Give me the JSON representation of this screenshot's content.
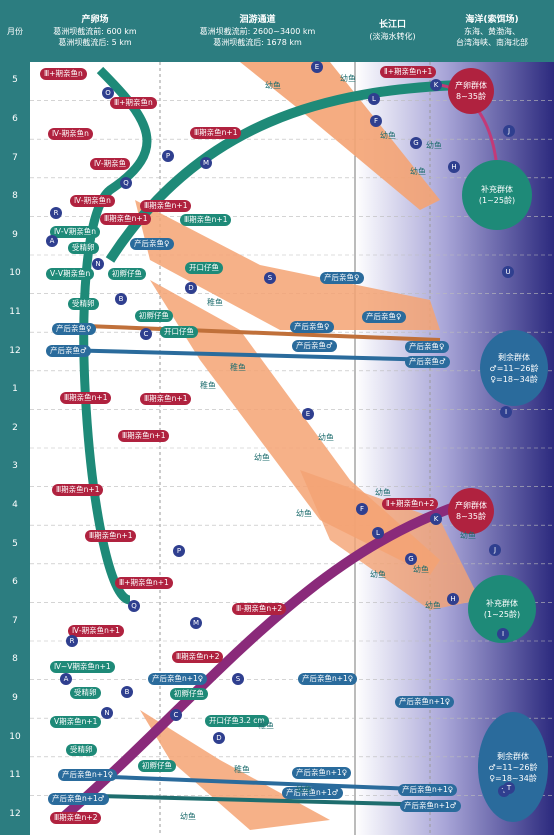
{
  "header": {
    "month": "月份",
    "spawn": {
      "title": "产卵场",
      "l1": "葛洲坝截流前: 600 km",
      "l2": "葛洲坝截流后: 5 km"
    },
    "migr": {
      "title": "洄游通道",
      "l1": "葛洲坝截流前: 2600~3400 km",
      "l2": "葛洲坝截流后: 1678 km"
    },
    "estuary": {
      "title": "长江口",
      "l1": "(淡海水转化)"
    },
    "ocean": {
      "title": "海洋(索饵场)",
      "l1": "东海、黄渤海、",
      "l2": "台湾海峡、南海北部"
    }
  },
  "months": [
    "5",
    "6",
    "7",
    "8",
    "9",
    "10",
    "11",
    "12",
    "1",
    "2",
    "3",
    "4",
    "5",
    "6",
    "7",
    "8",
    "9",
    "10",
    "11",
    "12"
  ],
  "groups": {
    "spawn_group": [
      "产卵群体",
      "8~35龄"
    ],
    "supp_group": [
      "补充群体",
      "(1~25龄)"
    ],
    "rem_group": [
      "剩余群体",
      "♂=11~26龄",
      "♀=18~34龄"
    ]
  },
  "labels": [
    {
      "t": "Ⅲ+期亲鱼n",
      "c": "red"
    },
    {
      "t": "Ⅱ+期亲鱼n+1",
      "c": "red"
    },
    {
      "t": "Ⅲ+期亲鱼n",
      "c": "red"
    },
    {
      "t": "Ⅳ-期亲鱼n",
      "c": "red"
    },
    {
      "t": "Ⅲ期亲鱼n+1",
      "c": "red"
    },
    {
      "t": "Ⅳ-期亲鱼",
      "c": "red"
    },
    {
      "t": "Ⅳ-期亲鱼n",
      "c": "red"
    },
    {
      "t": "Ⅲ期亲鱼n+1",
      "c": "red"
    },
    {
      "t": "Ⅲ期亲鱼n+1",
      "c": "red"
    },
    {
      "t": "Ⅲ期亲鱼n+1",
      "c": "teal"
    },
    {
      "t": "Ⅳ-Ⅴ期亲鱼n",
      "c": "teal"
    },
    {
      "t": "受精卵",
      "c": "teal"
    },
    {
      "t": "产后亲鱼♀",
      "c": "blue"
    },
    {
      "t": "Ⅴ-Ⅴ期亲鱼n",
      "c": "teal"
    },
    {
      "t": "初孵仔鱼",
      "c": "teal"
    },
    {
      "t": "开口仔鱼",
      "c": "teal"
    },
    {
      "t": "产后亲鱼♀",
      "c": "blue"
    },
    {
      "t": "受精卵",
      "c": "teal"
    },
    {
      "t": "初孵仔鱼",
      "c": "teal"
    },
    {
      "t": "产后亲鱼♀",
      "c": "blue"
    },
    {
      "t": "产后亲鱼♀",
      "c": "blue"
    },
    {
      "t": "开口仔鱼",
      "c": "teal"
    },
    {
      "t": "产后亲鱼♀",
      "c": "blue"
    },
    {
      "t": "产后亲鱼♀",
      "c": "blue"
    },
    {
      "t": "产后亲鱼♂",
      "c": "blue"
    },
    {
      "t": "产后亲鱼♂",
      "c": "blue"
    },
    {
      "t": "产后亲鱼♂",
      "c": "blue"
    },
    {
      "t": "Ⅲ期亲鱼n+1",
      "c": "red"
    },
    {
      "t": "Ⅲ期亲鱼n+1",
      "c": "red"
    },
    {
      "t": "Ⅲ期亲鱼n+1",
      "c": "red"
    },
    {
      "t": "Ⅲ期亲鱼n+1",
      "c": "red"
    },
    {
      "t": "Ⅱ+期亲鱼n+2",
      "c": "red"
    },
    {
      "t": "Ⅲ期亲鱼n+1",
      "c": "red"
    },
    {
      "t": "Ⅲ+期亲鱼n+1",
      "c": "red"
    },
    {
      "t": "Ⅲ-期亲鱼n+2",
      "c": "red"
    },
    {
      "t": "Ⅳ-期亲鱼n+1",
      "c": "red"
    },
    {
      "t": "Ⅲ期亲鱼n+2",
      "c": "red"
    },
    {
      "t": "Ⅳ~Ⅴ期亲鱼n+1",
      "c": "teal"
    },
    {
      "t": "受精卵",
      "c": "teal"
    },
    {
      "t": "产后亲鱼n+1♀",
      "c": "blue"
    },
    {
      "t": "产后亲鱼n+1♀",
      "c": "blue"
    },
    {
      "t": "初孵仔鱼",
      "c": "teal"
    },
    {
      "t": "产后亲鱼n+1♀",
      "c": "blue"
    },
    {
      "t": "开口仔鱼3.2 cm",
      "c": "teal"
    },
    {
      "t": "Ⅴ期亲鱼n+1",
      "c": "teal"
    },
    {
      "t": "受精卵",
      "c": "teal"
    },
    {
      "t": "初孵仔鱼",
      "c": "teal"
    },
    {
      "t": "产后亲鱼n+1♀",
      "c": "blue"
    },
    {
      "t": "产后亲鱼n+1♀",
      "c": "blue"
    },
    {
      "t": "产后亲鱼n+1♀",
      "c": "blue"
    },
    {
      "t": "产后亲鱼n+1♂",
      "c": "blue"
    },
    {
      "t": "产后亲鱼n+1♂",
      "c": "blue"
    },
    {
      "t": "产后亲鱼n+1♂",
      "c": "blue"
    },
    {
      "t": "Ⅲ期亲鱼n+2",
      "c": "red"
    }
  ],
  "plain": [
    "幼鱼",
    "幼鱼",
    "幼鱼",
    "幼鱼",
    "幼鱼",
    "稚鱼",
    "稚鱼",
    "稚鱼",
    "幼鱼",
    "幼鱼",
    "幼鱼",
    "幼鱼",
    "幼鱼",
    "幼鱼",
    "幼鱼",
    "稚鱼",
    "稚鱼",
    "幼鱼",
    "幼鱼",
    "幼鱼"
  ],
  "circles": [
    "E",
    "K",
    "L",
    "O",
    "P",
    "Q",
    "R",
    "A",
    "N",
    "B",
    "C",
    "D",
    "S",
    "M",
    "I",
    "J",
    "F",
    "G",
    "H",
    "U",
    "T",
    "E",
    "K",
    "L",
    "M",
    "P",
    "Q",
    "R",
    "A",
    "N",
    "B",
    "C",
    "D",
    "S",
    "J",
    "F",
    "G",
    "H",
    "I",
    "T"
  ]
}
